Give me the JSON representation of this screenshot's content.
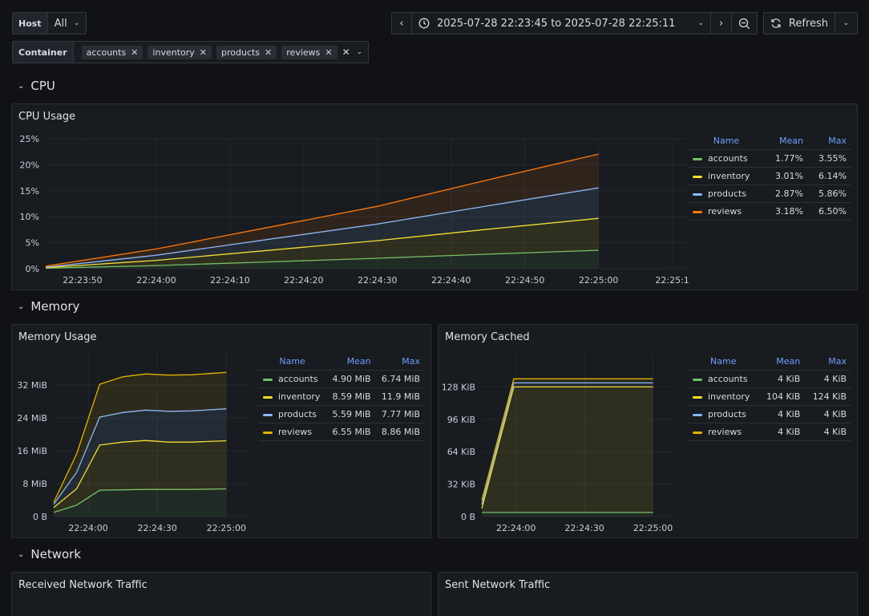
{
  "toolbar": {
    "host_label": "Host",
    "host_value": "All",
    "container_label": "Container",
    "containers": [
      "accounts",
      "inventory",
      "products",
      "reviews"
    ],
    "time_range": "2025-07-28 22:23:45 to 2025-07-28 22:25:11",
    "refresh_label": "Refresh"
  },
  "sections": {
    "cpu": "CPU",
    "memory": "Memory",
    "network": "Network"
  },
  "colors": {
    "accounts": "#73bf69",
    "inventory": "#fade2a",
    "products": "#8ab8ff",
    "reviews": "#ff780a",
    "reviews_mem": "#e0b400"
  },
  "panels": {
    "cpu": {
      "title": "CPU Usage",
      "legend_headers": [
        "Name",
        "Mean",
        "Max"
      ],
      "legend": [
        {
          "name": "accounts",
          "mean": "1.77%",
          "max": "3.55%"
        },
        {
          "name": "inventory",
          "mean": "3.01%",
          "max": "6.14%"
        },
        {
          "name": "products",
          "mean": "2.87%",
          "max": "5.86%"
        },
        {
          "name": "reviews",
          "mean": "3.18%",
          "max": "6.50%"
        }
      ]
    },
    "mem_usage": {
      "title": "Memory Usage",
      "legend_headers": [
        "Name",
        "Mean",
        "Max"
      ],
      "legend": [
        {
          "name": "accounts",
          "mean": "4.90 MiB",
          "max": "6.74 MiB"
        },
        {
          "name": "inventory",
          "mean": "8.59 MiB",
          "max": "11.9 MiB"
        },
        {
          "name": "products",
          "mean": "5.59 MiB",
          "max": "7.77 MiB"
        },
        {
          "name": "reviews",
          "mean": "6.55 MiB",
          "max": "8.86 MiB"
        }
      ]
    },
    "mem_cached": {
      "title": "Memory Cached",
      "legend_headers": [
        "Name",
        "Mean",
        "Max"
      ],
      "legend": [
        {
          "name": "accounts",
          "mean": "4 KiB",
          "max": "4 KiB"
        },
        {
          "name": "inventory",
          "mean": "104 KiB",
          "max": "124 KiB"
        },
        {
          "name": "products",
          "mean": "4 KiB",
          "max": "4 KiB"
        },
        {
          "name": "reviews",
          "mean": "4 KiB",
          "max": "4 KiB"
        }
      ]
    },
    "net_rx": {
      "title": "Received Network Traffic"
    },
    "net_tx": {
      "title": "Sent Network Traffic"
    }
  },
  "chart_data": [
    {
      "type": "area",
      "title": "CPU Usage",
      "stacked": true,
      "y_ticks": [
        "0%",
        "5%",
        "10%",
        "15%",
        "20%",
        "25%"
      ],
      "ylim": [
        0,
        25
      ],
      "x_ticks": [
        "22:23:50",
        "22:24:00",
        "22:24:10",
        "22:24:20",
        "22:24:30",
        "22:24:40",
        "22:24:50",
        "22:25:00",
        "22:25:1"
      ],
      "xlim": [
        "22:23:45",
        "22:25:12"
      ],
      "x": [
        "22:23:45",
        "22:24:00",
        "22:24:15",
        "22:24:30",
        "22:24:45",
        "22:25:00"
      ],
      "series": [
        {
          "name": "accounts",
          "values": [
            0.1,
            0.6,
            1.3,
            2.0,
            2.8,
            3.55
          ]
        },
        {
          "name": "inventory",
          "values": [
            0.1,
            1.0,
            2.2,
            3.4,
            4.8,
            6.14
          ]
        },
        {
          "name": "products",
          "values": [
            0.1,
            1.0,
            2.1,
            3.2,
            4.5,
            5.86
          ]
        },
        {
          "name": "reviews",
          "values": [
            0.2,
            1.2,
            2.3,
            3.4,
            5.0,
            6.5
          ]
        }
      ]
    },
    {
      "type": "area",
      "title": "Memory Usage",
      "stacked": true,
      "y_ticks": [
        "0 B",
        "8 MiB",
        "16 MiB",
        "24 MiB",
        "32 MiB"
      ],
      "ylim": [
        0,
        40
      ],
      "x_ticks": [
        "22:24:00",
        "22:24:30",
        "22:25:00"
      ],
      "xlim": [
        "22:23:45",
        "22:25:10"
      ],
      "x": [
        "22:23:45",
        "22:23:55",
        "22:24:05",
        "22:24:15",
        "22:24:25",
        "22:24:35",
        "22:24:45",
        "22:25:00"
      ],
      "series": [
        {
          "name": "accounts",
          "values": [
            1.0,
            2.8,
            6.4,
            6.5,
            6.6,
            6.6,
            6.6,
            6.74
          ]
        },
        {
          "name": "inventory",
          "values": [
            1.2,
            4.0,
            11.0,
            11.6,
            11.9,
            11.5,
            11.5,
            11.7
          ]
        },
        {
          "name": "products",
          "values": [
            0.8,
            4.0,
            6.8,
            7.2,
            7.4,
            7.5,
            7.6,
            7.77
          ]
        },
        {
          "name": "reviews",
          "values": [
            0.5,
            4.5,
            8.0,
            8.7,
            8.8,
            8.8,
            8.8,
            8.86
          ]
        }
      ]
    },
    {
      "type": "area",
      "title": "Memory Cached",
      "stacked": true,
      "y_ticks": [
        "0 B",
        "32 KiB",
        "64 KiB",
        "96 KiB",
        "128 KiB"
      ],
      "ylim": [
        0,
        160
      ],
      "x_ticks": [
        "22:24:00",
        "22:24:30",
        "22:25:00"
      ],
      "xlim": [
        "22:23:45",
        "22:25:10"
      ],
      "x": [
        "22:23:45",
        "22:23:59",
        "22:25:00"
      ],
      "series": [
        {
          "name": "accounts",
          "values": [
            4,
            4,
            4
          ]
        },
        {
          "name": "inventory",
          "values": [
            4,
            124,
            124
          ]
        },
        {
          "name": "products",
          "values": [
            4,
            4,
            4
          ]
        },
        {
          "name": "reviews",
          "values": [
            4,
            4,
            4
          ]
        }
      ]
    }
  ]
}
